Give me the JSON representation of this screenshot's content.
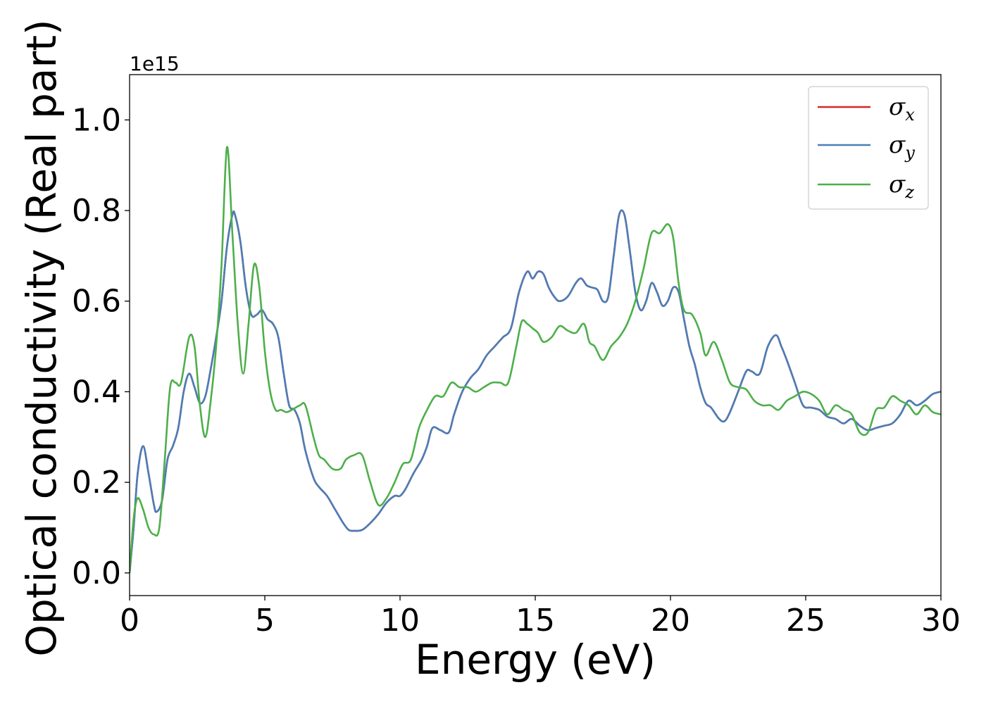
{
  "chart_data": {
    "type": "line",
    "xlabel": "Energy (eV)",
    "ylabel": "Optical conductivity (Real part)",
    "y_offset_text": "1e15",
    "xlim": [
      0,
      30
    ],
    "ylim": [
      -0.05,
      1.1
    ],
    "y_scale_factor": 1000000000000000.0,
    "x_ticks": [
      0,
      5,
      10,
      15,
      20,
      25,
      30
    ],
    "x_tick_labels": [
      "0",
      "5",
      "10",
      "15",
      "20",
      "25",
      "30"
    ],
    "y_ticks": [
      0.0,
      0.2,
      0.4,
      0.6,
      0.8,
      1.0
    ],
    "y_tick_labels": [
      "0.0",
      "0.2",
      "0.4",
      "0.6",
      "0.8",
      "1.0"
    ],
    "grid": false,
    "legend_position": "top-right",
    "series": [
      {
        "name": "σx",
        "symbol": "σ",
        "subscript": "x",
        "color": "#d62728",
        "x": [
          0,
          0.15,
          0.3,
          0.5,
          0.7,
          0.9,
          1.0,
          1.2,
          1.4,
          1.6,
          1.8,
          2.0,
          2.2,
          2.4,
          2.6,
          2.8,
          3.0,
          3.2,
          3.4,
          3.6,
          3.8,
          3.9,
          4.1,
          4.3,
          4.5,
          4.7,
          4.9,
          5.1,
          5.3,
          5.5,
          5.7,
          5.9,
          6.1,
          6.3,
          6.5,
          6.8,
          7.0,
          7.3,
          7.6,
          7.9,
          8.1,
          8.3,
          8.6,
          8.9,
          9.2,
          9.5,
          9.8,
          10.0,
          10.2,
          10.5,
          10.8,
          11.0,
          11.2,
          11.5,
          11.8,
          12.0,
          12.3,
          12.6,
          12.9,
          13.2,
          13.5,
          13.8,
          14.1,
          14.4,
          14.7,
          14.9,
          15.1,
          15.3,
          15.5,
          15.7,
          15.9,
          16.2,
          16.5,
          16.7,
          16.9,
          17.1,
          17.3,
          17.5,
          17.7,
          17.9,
          18.1,
          18.3,
          18.5,
          18.7,
          18.9,
          19.1,
          19.3,
          19.5,
          19.7,
          19.9,
          20.1,
          20.3,
          20.5,
          20.7,
          20.9,
          21.1,
          21.3,
          21.5,
          21.8,
          22.0,
          22.2,
          22.5,
          22.8,
          23.0,
          23.3,
          23.6,
          23.9,
          24.1,
          24.3,
          24.6,
          24.9,
          25.2,
          25.5,
          25.8,
          26.1,
          26.4,
          26.7,
          27.0,
          27.3,
          27.6,
          27.9,
          28.2,
          28.5,
          28.8,
          29.1,
          29.4,
          29.7,
          30.0
        ],
        "values": [
          0.0,
          0.1,
          0.22,
          0.28,
          0.22,
          0.15,
          0.135,
          0.16,
          0.25,
          0.28,
          0.32,
          0.4,
          0.44,
          0.41,
          0.375,
          0.39,
          0.45,
          0.52,
          0.6,
          0.72,
          0.79,
          0.79,
          0.73,
          0.63,
          0.57,
          0.57,
          0.58,
          0.56,
          0.55,
          0.52,
          0.44,
          0.37,
          0.36,
          0.33,
          0.27,
          0.21,
          0.19,
          0.17,
          0.14,
          0.11,
          0.095,
          0.093,
          0.095,
          0.11,
          0.13,
          0.155,
          0.17,
          0.17,
          0.185,
          0.22,
          0.25,
          0.28,
          0.32,
          0.315,
          0.31,
          0.35,
          0.4,
          0.43,
          0.45,
          0.48,
          0.5,
          0.52,
          0.54,
          0.62,
          0.665,
          0.65,
          0.665,
          0.66,
          0.63,
          0.61,
          0.6,
          0.61,
          0.64,
          0.65,
          0.635,
          0.63,
          0.625,
          0.6,
          0.61,
          0.7,
          0.79,
          0.79,
          0.71,
          0.62,
          0.58,
          0.6,
          0.64,
          0.62,
          0.59,
          0.6,
          0.63,
          0.62,
          0.56,
          0.5,
          0.46,
          0.41,
          0.375,
          0.365,
          0.34,
          0.335,
          0.355,
          0.4,
          0.445,
          0.445,
          0.44,
          0.5,
          0.525,
          0.5,
          0.47,
          0.42,
          0.37,
          0.365,
          0.36,
          0.345,
          0.34,
          0.33,
          0.34,
          0.325,
          0.315,
          0.32,
          0.325,
          0.33,
          0.35,
          0.38,
          0.37,
          0.38,
          0.395,
          0.4
        ]
      },
      {
        "name": "σy",
        "symbol": "σ",
        "subscript": "y",
        "color": "#4a7eb7",
        "x": [
          0,
          0.15,
          0.3,
          0.5,
          0.7,
          0.9,
          1.0,
          1.2,
          1.4,
          1.6,
          1.8,
          2.0,
          2.2,
          2.4,
          2.6,
          2.8,
          3.0,
          3.2,
          3.4,
          3.6,
          3.8,
          3.9,
          4.1,
          4.3,
          4.5,
          4.7,
          4.9,
          5.1,
          5.3,
          5.5,
          5.7,
          5.9,
          6.1,
          6.3,
          6.5,
          6.8,
          7.0,
          7.3,
          7.6,
          7.9,
          8.1,
          8.3,
          8.6,
          8.9,
          9.2,
          9.5,
          9.8,
          10.0,
          10.2,
          10.5,
          10.8,
          11.0,
          11.2,
          11.5,
          11.8,
          12.0,
          12.3,
          12.6,
          12.9,
          13.2,
          13.5,
          13.8,
          14.1,
          14.4,
          14.7,
          14.9,
          15.1,
          15.3,
          15.5,
          15.7,
          15.9,
          16.2,
          16.5,
          16.7,
          16.9,
          17.1,
          17.3,
          17.5,
          17.7,
          17.9,
          18.1,
          18.3,
          18.5,
          18.7,
          18.9,
          19.1,
          19.3,
          19.5,
          19.7,
          19.9,
          20.1,
          20.3,
          20.5,
          20.7,
          20.9,
          21.1,
          21.3,
          21.5,
          21.8,
          22.0,
          22.2,
          22.5,
          22.8,
          23.0,
          23.3,
          23.6,
          23.9,
          24.1,
          24.3,
          24.6,
          24.9,
          25.2,
          25.5,
          25.8,
          26.1,
          26.4,
          26.7,
          27.0,
          27.3,
          27.6,
          27.9,
          28.2,
          28.5,
          28.8,
          29.1,
          29.4,
          29.7,
          30.0
        ],
        "values": [
          0.0,
          0.1,
          0.22,
          0.28,
          0.22,
          0.15,
          0.135,
          0.16,
          0.25,
          0.28,
          0.32,
          0.4,
          0.44,
          0.41,
          0.375,
          0.39,
          0.45,
          0.52,
          0.6,
          0.72,
          0.79,
          0.79,
          0.73,
          0.63,
          0.57,
          0.57,
          0.58,
          0.56,
          0.55,
          0.52,
          0.44,
          0.37,
          0.36,
          0.33,
          0.27,
          0.21,
          0.19,
          0.17,
          0.14,
          0.11,
          0.095,
          0.093,
          0.095,
          0.11,
          0.13,
          0.155,
          0.17,
          0.17,
          0.185,
          0.22,
          0.25,
          0.28,
          0.32,
          0.315,
          0.31,
          0.35,
          0.4,
          0.43,
          0.45,
          0.48,
          0.5,
          0.52,
          0.54,
          0.62,
          0.665,
          0.65,
          0.665,
          0.66,
          0.63,
          0.61,
          0.6,
          0.61,
          0.64,
          0.65,
          0.635,
          0.63,
          0.625,
          0.6,
          0.61,
          0.7,
          0.79,
          0.79,
          0.71,
          0.62,
          0.58,
          0.6,
          0.64,
          0.62,
          0.59,
          0.6,
          0.63,
          0.62,
          0.56,
          0.5,
          0.46,
          0.41,
          0.375,
          0.365,
          0.34,
          0.335,
          0.355,
          0.4,
          0.445,
          0.445,
          0.44,
          0.5,
          0.525,
          0.5,
          0.47,
          0.42,
          0.37,
          0.365,
          0.36,
          0.345,
          0.34,
          0.33,
          0.34,
          0.325,
          0.315,
          0.32,
          0.325,
          0.33,
          0.35,
          0.38,
          0.37,
          0.38,
          0.395,
          0.4
        ]
      },
      {
        "name": "σz",
        "symbol": "σ",
        "subscript": "z",
        "color": "#4daf4a",
        "x": [
          0,
          0.15,
          0.3,
          0.5,
          0.7,
          0.9,
          1.1,
          1.3,
          1.5,
          1.7,
          1.9,
          2.2,
          2.4,
          2.6,
          2.8,
          3.0,
          3.2,
          3.4,
          3.6,
          3.8,
          4.0,
          4.2,
          4.4,
          4.6,
          4.8,
          5.0,
          5.2,
          5.4,
          5.6,
          5.8,
          6.0,
          6.3,
          6.5,
          6.8,
          7.0,
          7.2,
          7.5,
          7.8,
          8.0,
          8.3,
          8.6,
          8.9,
          9.2,
          9.5,
          9.8,
          10.1,
          10.4,
          10.7,
          11.0,
          11.3,
          11.6,
          11.9,
          12.2,
          12.5,
          12.8,
          13.1,
          13.4,
          13.7,
          14.0,
          14.3,
          14.5,
          14.7,
          14.9,
          15.1,
          15.3,
          15.6,
          15.9,
          16.2,
          16.5,
          16.8,
          17.0,
          17.2,
          17.5,
          17.8,
          18.1,
          18.4,
          18.7,
          19.0,
          19.3,
          19.6,
          19.9,
          20.1,
          20.3,
          20.5,
          20.8,
          21.1,
          21.3,
          21.6,
          21.9,
          22.2,
          22.5,
          22.8,
          23.1,
          23.4,
          23.7,
          24.0,
          24.3,
          24.6,
          24.9,
          25.2,
          25.5,
          25.8,
          26.1,
          26.4,
          26.7,
          27.0,
          27.3,
          27.6,
          27.9,
          28.2,
          28.5,
          28.8,
          29.1,
          29.4,
          29.7,
          30.0
        ],
        "values": [
          0.0,
          0.12,
          0.165,
          0.14,
          0.1,
          0.085,
          0.1,
          0.25,
          0.41,
          0.42,
          0.42,
          0.52,
          0.5,
          0.37,
          0.3,
          0.38,
          0.5,
          0.68,
          0.94,
          0.75,
          0.55,
          0.44,
          0.55,
          0.68,
          0.63,
          0.49,
          0.4,
          0.36,
          0.36,
          0.355,
          0.36,
          0.37,
          0.37,
          0.3,
          0.26,
          0.25,
          0.23,
          0.23,
          0.25,
          0.26,
          0.26,
          0.2,
          0.15,
          0.165,
          0.2,
          0.24,
          0.25,
          0.32,
          0.36,
          0.39,
          0.39,
          0.42,
          0.41,
          0.41,
          0.4,
          0.41,
          0.42,
          0.42,
          0.42,
          0.5,
          0.555,
          0.55,
          0.54,
          0.53,
          0.51,
          0.52,
          0.545,
          0.535,
          0.53,
          0.55,
          0.51,
          0.5,
          0.47,
          0.5,
          0.52,
          0.55,
          0.6,
          0.67,
          0.75,
          0.75,
          0.77,
          0.74,
          0.64,
          0.58,
          0.57,
          0.53,
          0.48,
          0.51,
          0.47,
          0.42,
          0.41,
          0.405,
          0.38,
          0.37,
          0.37,
          0.36,
          0.38,
          0.39,
          0.4,
          0.395,
          0.38,
          0.35,
          0.37,
          0.36,
          0.35,
          0.31,
          0.31,
          0.36,
          0.365,
          0.39,
          0.38,
          0.37,
          0.35,
          0.37,
          0.355,
          0.35
        ]
      }
    ]
  }
}
